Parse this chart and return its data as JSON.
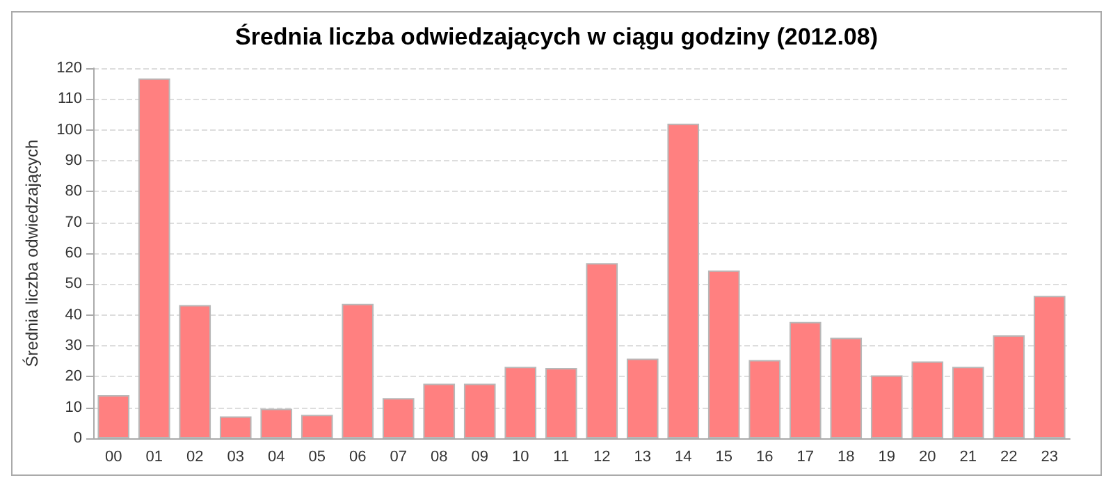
{
  "chart_data": {
    "type": "bar",
    "title": "Średnia liczba odwiedzających w ciągu godziny (2012.08)",
    "ylabel": "Średnia liczba odwiedzających",
    "categories": [
      "00",
      "01",
      "02",
      "03",
      "04",
      "05",
      "06",
      "07",
      "08",
      "09",
      "10",
      "11",
      "12",
      "13",
      "14",
      "15",
      "16",
      "17",
      "18",
      "19",
      "20",
      "21",
      "22",
      "23"
    ],
    "values": [
      14,
      116.7,
      43.2,
      7.1,
      9.6,
      7.6,
      43.6,
      13,
      17.7,
      17.7,
      23.2,
      22.8,
      56.8,
      25.8,
      102,
      54.4,
      25.4,
      37.7,
      32.6,
      20.4,
      24.9,
      23.2,
      33.4,
      46.2
    ],
    "color": "#ff8080",
    "ylim": [
      0,
      120
    ],
    "yticks": [
      0,
      10,
      20,
      30,
      40,
      50,
      60,
      70,
      80,
      90,
      100,
      110,
      120
    ],
    "grid": "y"
  }
}
